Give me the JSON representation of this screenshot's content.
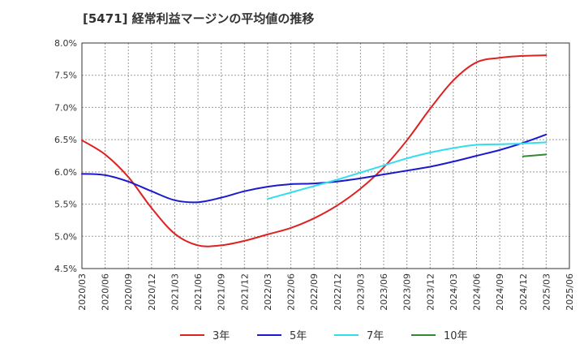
{
  "chart_data": {
    "type": "line",
    "title": "[5471]  経常利益マージンの平均値の推移",
    "xlabel": "",
    "ylabel": "",
    "ylim": [
      4.5,
      8.0
    ],
    "grid": true,
    "legend_position": "bottom",
    "x_ticks": [
      "2020/03",
      "2020/06",
      "2020/09",
      "2020/12",
      "2021/03",
      "2021/06",
      "2021/09",
      "2021/12",
      "2022/03",
      "2022/06",
      "2022/09",
      "2022/12",
      "2023/03",
      "2023/06",
      "2023/09",
      "2023/12",
      "2024/03",
      "2024/06",
      "2024/09",
      "2024/12",
      "2025/03",
      "2025/06"
    ],
    "y_ticks": [
      "4.5%",
      "5.0%",
      "5.5%",
      "6.0%",
      "6.5%",
      "7.0%",
      "7.5%",
      "8.0%"
    ],
    "y_tick_values": [
      4.5,
      5.0,
      5.5,
      6.0,
      6.5,
      7.0,
      7.5,
      8.0
    ],
    "series": [
      {
        "name": "3年",
        "color": "#dd2222",
        "x": [
          "2020/03",
          "2020/06",
          "2020/09",
          "2020/12",
          "2021/03",
          "2021/06",
          "2021/09",
          "2021/12",
          "2022/03",
          "2022/06",
          "2022/09",
          "2022/12",
          "2023/03",
          "2023/06",
          "2023/09",
          "2023/12",
          "2024/03",
          "2024/06",
          "2024/09",
          "2024/12",
          "2025/03"
        ],
        "values": [
          6.49,
          6.27,
          5.92,
          5.44,
          5.04,
          4.86,
          4.86,
          4.93,
          5.03,
          5.13,
          5.28,
          5.48,
          5.74,
          6.07,
          6.49,
          6.98,
          7.42,
          7.7,
          7.77,
          7.8,
          7.81
        ]
      },
      {
        "name": "5年",
        "color": "#1a1acc",
        "x": [
          "2020/03",
          "2020/06",
          "2020/09",
          "2020/12",
          "2021/03",
          "2021/06",
          "2021/09",
          "2021/12",
          "2022/03",
          "2022/06",
          "2022/09",
          "2022/12",
          "2023/03",
          "2023/06",
          "2023/09",
          "2023/12",
          "2024/03",
          "2024/06",
          "2024/09",
          "2024/12",
          "2025/03"
        ],
        "values": [
          5.97,
          5.95,
          5.85,
          5.7,
          5.56,
          5.53,
          5.6,
          5.7,
          5.77,
          5.81,
          5.82,
          5.85,
          5.9,
          5.96,
          6.02,
          6.08,
          6.16,
          6.25,
          6.34,
          6.45,
          6.58
        ]
      },
      {
        "name": "7年",
        "color": "#33ddee",
        "x": [
          "2022/03",
          "2022/06",
          "2022/09",
          "2022/12",
          "2023/03",
          "2023/06",
          "2023/09",
          "2023/12",
          "2024/03",
          "2024/06",
          "2024/09",
          "2024/12",
          "2025/03"
        ],
        "values": [
          5.58,
          5.68,
          5.78,
          5.88,
          5.99,
          6.1,
          6.21,
          6.3,
          6.37,
          6.42,
          6.43,
          6.44,
          6.46
        ]
      },
      {
        "name": "10年",
        "color": "#338833",
        "x": [
          "2024/12",
          "2025/03"
        ],
        "values": [
          6.24,
          6.27
        ]
      }
    ]
  }
}
